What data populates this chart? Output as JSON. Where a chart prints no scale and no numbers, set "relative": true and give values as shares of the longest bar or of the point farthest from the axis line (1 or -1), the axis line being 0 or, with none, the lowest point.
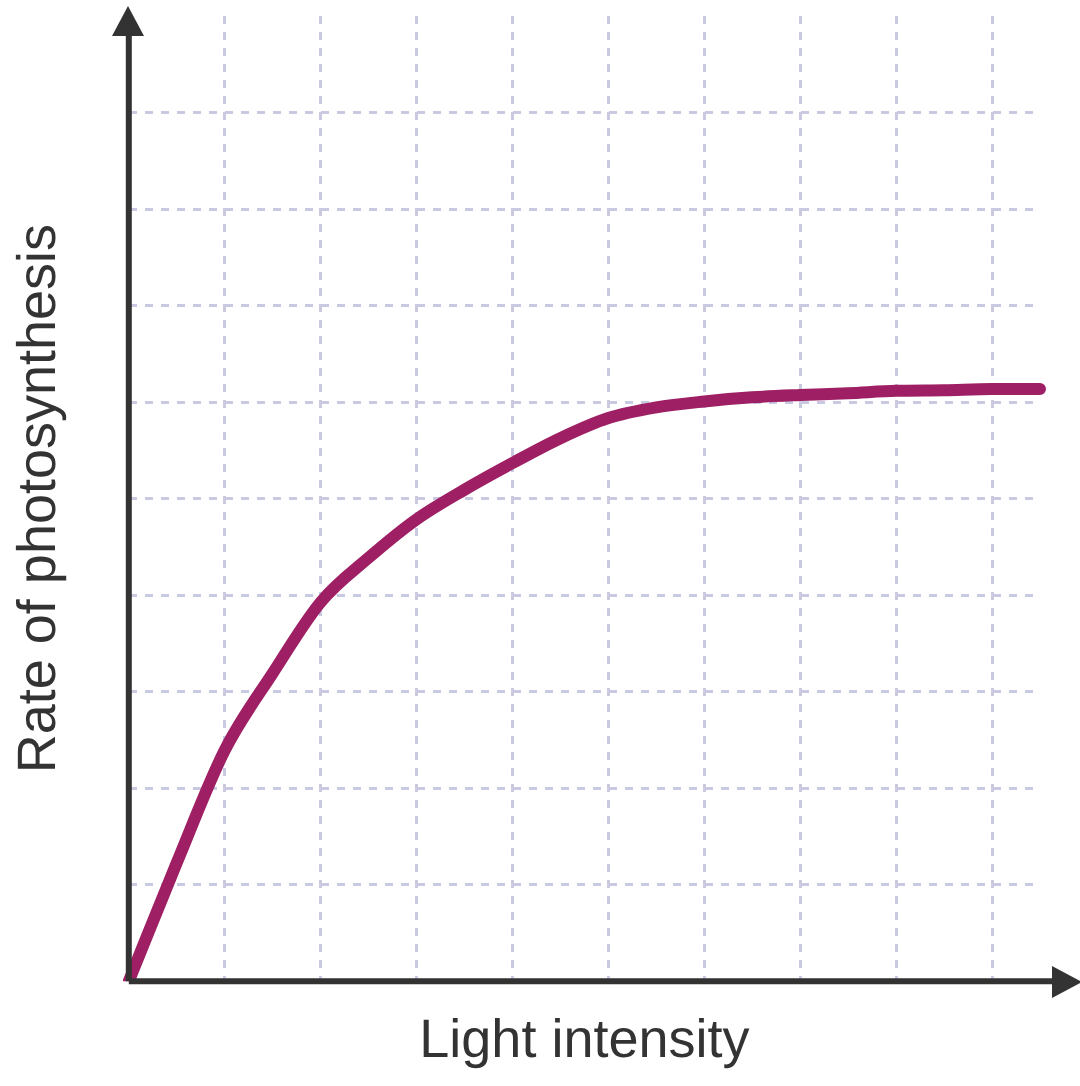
{
  "chart_data": {
    "type": "line",
    "xlabel": "Light intensity",
    "ylabel": "Rate of photosynthesis",
    "relative": true,
    "grid": true,
    "legend": false,
    "marker": "none",
    "line_style": "solid",
    "categories": [
      null,
      null,
      null,
      null,
      null,
      null,
      null,
      null,
      null,
      null,
      null,
      null,
      null,
      null,
      null,
      null,
      null,
      null,
      null,
      null
    ],
    "series": [
      {
        "color": "#9e1f63",
        "values": [
          0,
          0.2,
          0.39,
          0.52,
          0.64,
          0.715,
          0.78,
          0.83,
          0.875,
          0.917,
          0.951,
          0.969,
          0.979,
          0.986,
          0.99,
          0.993,
          0.997,
          0.998,
          1,
          1
        ]
      }
    ]
  }
}
